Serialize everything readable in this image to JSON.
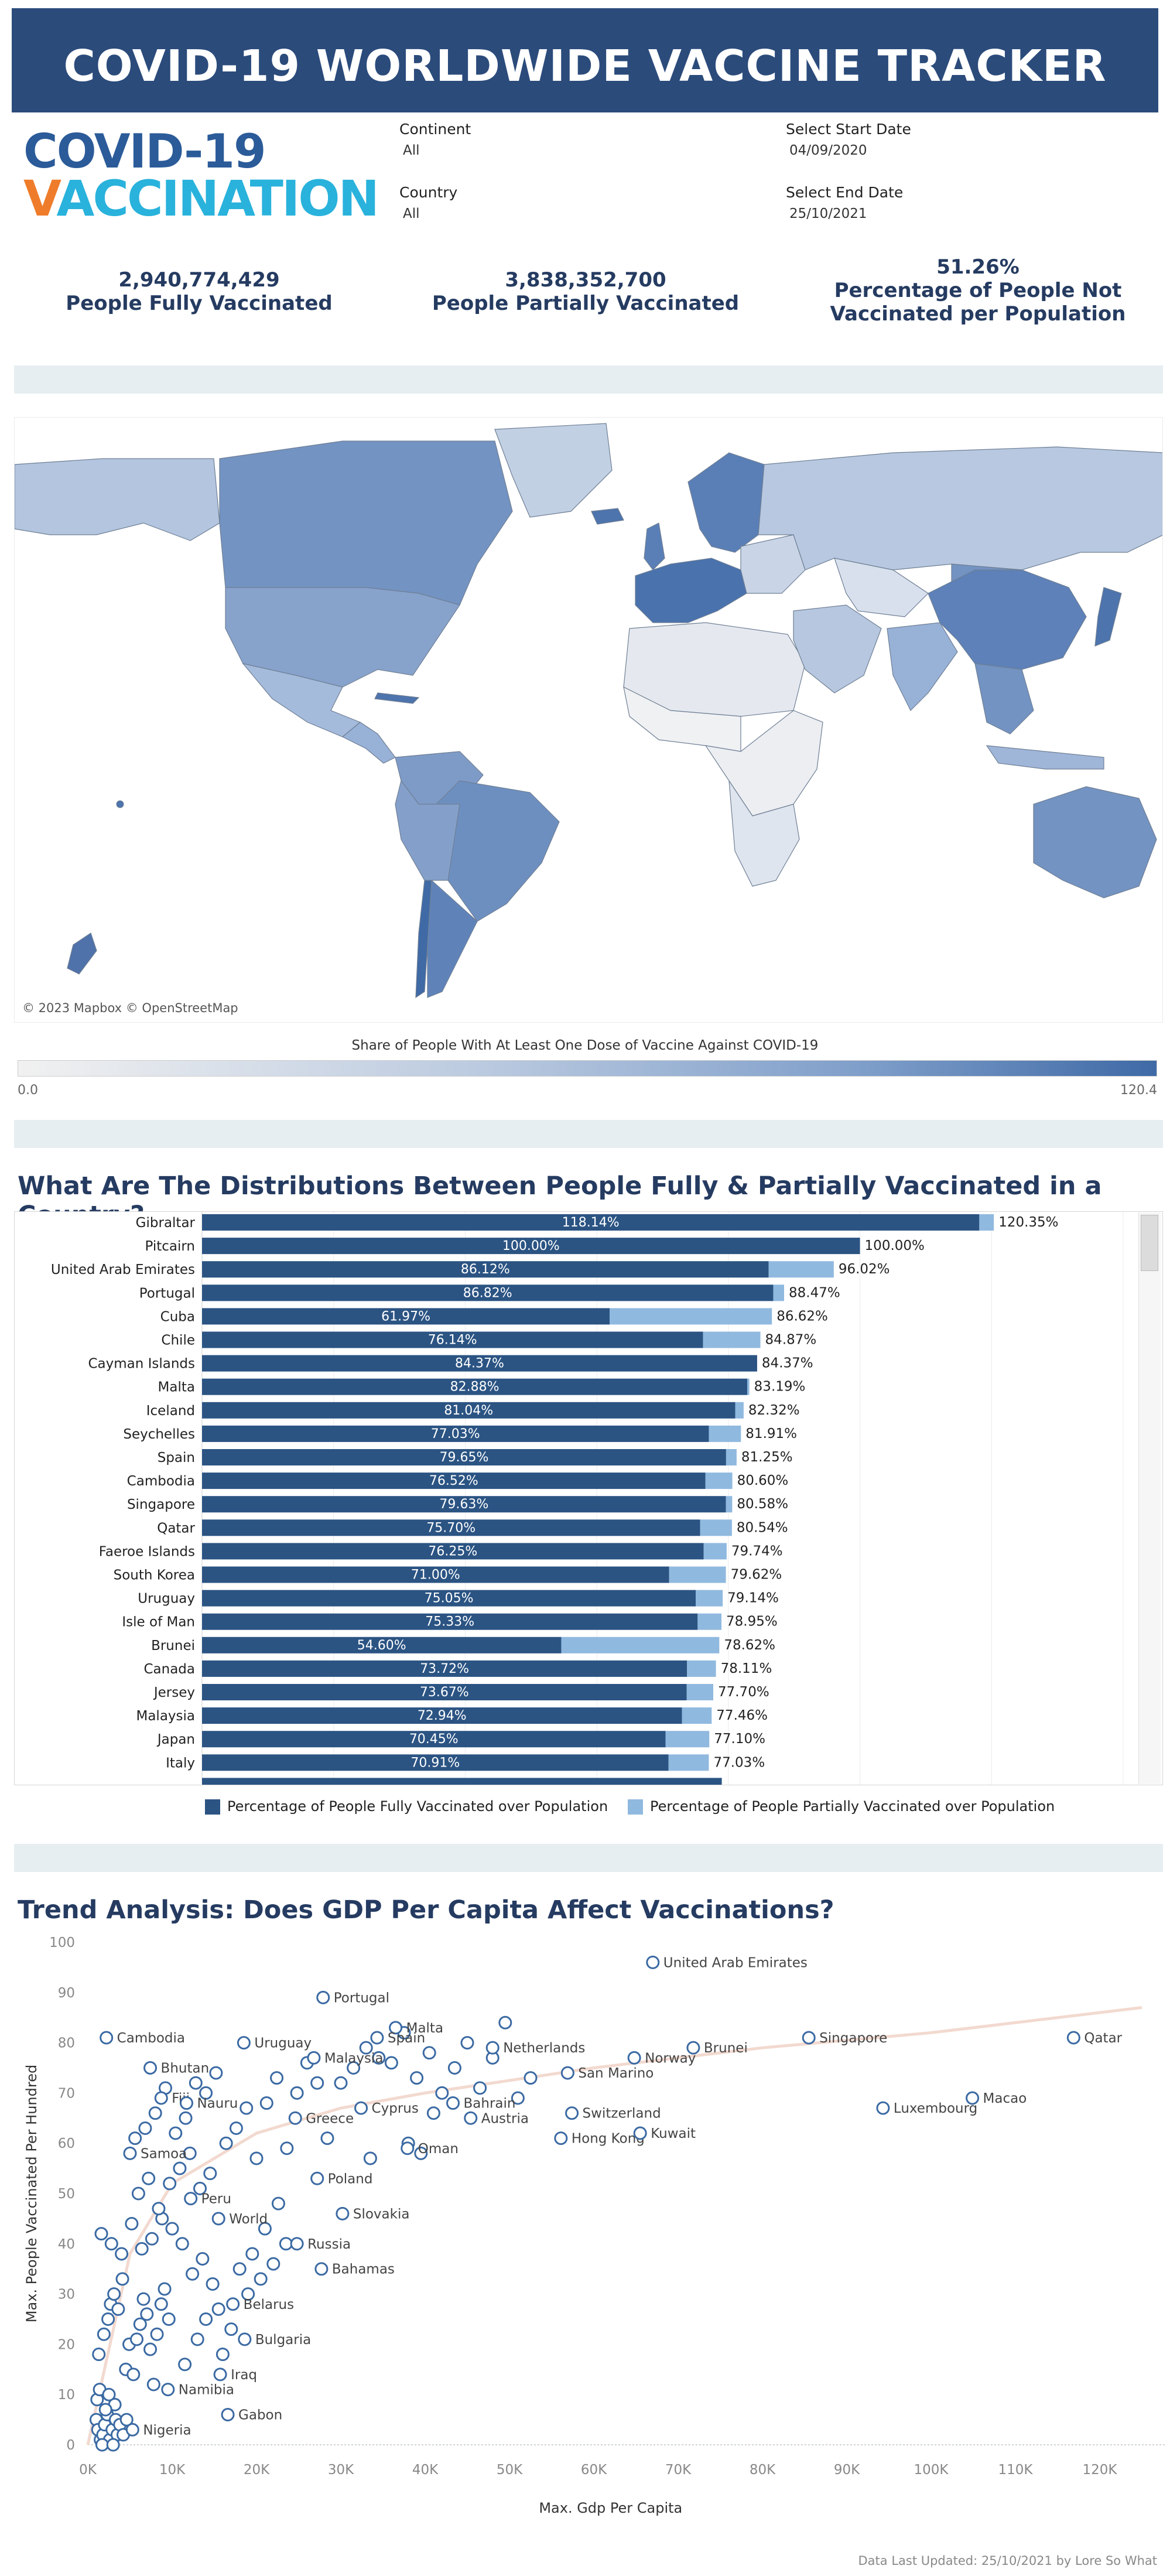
{
  "header": {
    "title": "COVID-19 WORLDWIDE VACCINE TRACKER"
  },
  "logo": {
    "line1": "COVID-19",
    "line2_v": "V",
    "line2_a": "ACCI",
    "line2_b": "NATION"
  },
  "filters": {
    "continent_label": "Continent",
    "continent_value": "All",
    "country_label": "Country",
    "country_value": "All",
    "start_label": "Select Start Date",
    "start_value": "04/09/2020",
    "end_label": "Select End Date",
    "end_value": "25/10/2021"
  },
  "kpis": {
    "fully_value": "2,940,774,429",
    "fully_label": "People Fully Vaccinated",
    "partial_value": "3,838,352,700",
    "partial_label": "People Partially Vaccinated",
    "not_value": "51.26%",
    "not_label_1": "Percentage of People Not",
    "not_label_2": "Vaccinated per Population"
  },
  "map": {
    "attribution": "© 2023 Mapbox © OpenStreetMap",
    "legend_title": "Share of People With At Least One Dose of Vaccine Against COVID-19",
    "legend_min": "0.0",
    "legend_max": "120.4",
    "colors": {
      "low": "#f1f1f1",
      "mid": "#b5c8e2",
      "high": "#3f6aa6"
    }
  },
  "bar_section": {
    "title": "What Are The Distributions Between People Fully & Partially Vaccinated in a Country?",
    "legend_fully": "Percentage of People Fully Vaccinated over Population",
    "legend_partial": "Percentage of People Partially Vaccinated over Population",
    "colors": {
      "fully": "#2b5483",
      "partial": "#90b9df"
    }
  },
  "scatter_section": {
    "title": "Trend Analysis: Does GDP Per Capita Affect Vaccinations?",
    "footer": "Data Last Updated: 25/10/2021 by Lore So What"
  },
  "chart_data": [
    {
      "type": "bar",
      "orientation": "horizontal",
      "stacked": true,
      "categories": [
        "Gibraltar",
        "Pitcairn",
        "United Arab Emirates",
        "Portugal",
        "Cuba",
        "Chile",
        "Cayman Islands",
        "Malta",
        "Iceland",
        "Seychelles",
        "Spain",
        "Cambodia",
        "Singapore",
        "Qatar",
        "Faeroe Islands",
        "South Korea",
        "Uruguay",
        "Isle of Man",
        "Brunei",
        "Canada",
        "Jersey",
        "Malaysia",
        "Japan",
        "Italy"
      ],
      "series": [
        {
          "name": "Percentage of People Fully Vaccinated over Population",
          "values": [
            118.14,
            100.0,
            86.12,
            86.82,
            61.97,
            76.14,
            84.37,
            82.88,
            81.04,
            77.03,
            79.65,
            76.52,
            79.63,
            75.7,
            76.25,
            71.0,
            75.05,
            75.33,
            54.6,
            73.72,
            73.67,
            72.94,
            70.45,
            70.91
          ],
          "labels": [
            "118.14%",
            "100.00%",
            "86.12%",
            "86.82%",
            "61.97%",
            "76.14%",
            "84.37%",
            "82.88%",
            "81.04%",
            "77.03%",
            "79.65%",
            "76.52%",
            "79.63%",
            "75.70%",
            "76.25%",
            "71.00%",
            "75.05%",
            "75.33%",
            "54.60%",
            "73.72%",
            "73.67%",
            "72.94%",
            "70.45%",
            "70.91%"
          ]
        },
        {
          "name": "Percentage of People Partially Vaccinated over Population",
          "totals": [
            120.35,
            100.0,
            96.02,
            88.47,
            86.62,
            84.87,
            84.37,
            83.19,
            82.32,
            81.91,
            81.25,
            80.6,
            80.58,
            80.54,
            79.74,
            79.62,
            79.14,
            78.95,
            78.62,
            78.11,
            77.7,
            77.46,
            77.1,
            77.03
          ],
          "labels": [
            "120.35%",
            "100.00%",
            "96.02%",
            "88.47%",
            "86.62%",
            "84.87%",
            "84.37%",
            "83.19%",
            "82.32%",
            "81.91%",
            "81.25%",
            "80.60%",
            "80.58%",
            "80.54%",
            "79.74%",
            "79.62%",
            "79.14%",
            "78.95%",
            "78.62%",
            "78.11%",
            "77.70%",
            "77.46%",
            "77.10%",
            "77.03%"
          ]
        }
      ]
    },
    {
      "type": "scatter",
      "title": "Trend Analysis: Does GDP Per Capita Affect Vaccinations?",
      "xlabel": "Max. Gdp Per Capita",
      "ylabel": "Max. People Vaccinated Per Hundred",
      "xlim": [
        0,
        125000
      ],
      "ylim": [
        0,
        100
      ],
      "xticks": [
        0,
        10000,
        20000,
        30000,
        40000,
        50000,
        60000,
        70000,
        80000,
        90000,
        100000,
        110000,
        120000
      ],
      "xtick_labels": [
        "0K",
        "10K",
        "20K",
        "30K",
        "40K",
        "50K",
        "60K",
        "70K",
        "80K",
        "90K",
        "100K",
        "110K",
        "120K"
      ],
      "yticks": [
        0,
        10,
        20,
        30,
        40,
        50,
        60,
        70,
        80,
        90,
        100
      ],
      "trend": [
        [
          0,
          0
        ],
        [
          5000,
          38
        ],
        [
          10000,
          52
        ],
        [
          20000,
          62
        ],
        [
          30000,
          67
        ],
        [
          40000,
          70
        ],
        [
          60000,
          75
        ],
        [
          80000,
          79
        ],
        [
          100000,
          82
        ],
        [
          125000,
          87
        ]
      ],
      "labeled_points": [
        {
          "name": "United Arab Emirates",
          "x": 67000,
          "y": 96
        },
        {
          "name": "Portugal",
          "x": 27900,
          "y": 89
        },
        {
          "name": "Malta",
          "x": 36500,
          "y": 83
        },
        {
          "name": "Spain",
          "x": 34300,
          "y": 81
        },
        {
          "name": "Uruguay",
          "x": 18500,
          "y": 80
        },
        {
          "name": "Cambodia",
          "x": 2200,
          "y": 81
        },
        {
          "name": "Netherlands",
          "x": 48000,
          "y": 79
        },
        {
          "name": "Norway",
          "x": 64800,
          "y": 77
        },
        {
          "name": "Brunei",
          "x": 71800,
          "y": 79
        },
        {
          "name": "Singapore",
          "x": 85500,
          "y": 81
        },
        {
          "name": "Qatar",
          "x": 116900,
          "y": 81
        },
        {
          "name": "Bhutan",
          "x": 7400,
          "y": 75
        },
        {
          "name": "Malaysia",
          "x": 26800,
          "y": 77
        },
        {
          "name": "Fiji",
          "x": 8700,
          "y": 69
        },
        {
          "name": "Nauru",
          "x": 11700,
          "y": 68
        },
        {
          "name": "Greece",
          "x": 24600,
          "y": 65
        },
        {
          "name": "Bahrain",
          "x": 43300,
          "y": 68
        },
        {
          "name": "Cyprus",
          "x": 32400,
          "y": 67
        },
        {
          "name": "San Marino",
          "x": 56900,
          "y": 74
        },
        {
          "name": "Switzerland",
          "x": 57400,
          "y": 66
        },
        {
          "name": "Austria",
          "x": 45400,
          "y": 65
        },
        {
          "name": "Samoa",
          "x": 5000,
          "y": 58
        },
        {
          "name": "Hong Kong",
          "x": 56100,
          "y": 61
        },
        {
          "name": "Kuwait",
          "x": 65500,
          "y": 62
        },
        {
          "name": "Luxembourg",
          "x": 94300,
          "y": 67
        },
        {
          "name": "Macao",
          "x": 104900,
          "y": 69
        },
        {
          "name": "Oman",
          "x": 37900,
          "y": 59
        },
        {
          "name": "Poland",
          "x": 27200,
          "y": 53
        },
        {
          "name": "Peru",
          "x": 12200,
          "y": 49
        },
        {
          "name": "World",
          "x": 15500,
          "y": 45
        },
        {
          "name": "Slovakia",
          "x": 30200,
          "y": 46
        },
        {
          "name": "Russia",
          "x": 24800,
          "y": 40
        },
        {
          "name": "Bahamas",
          "x": 27700,
          "y": 35
        },
        {
          "name": "Belarus",
          "x": 17200,
          "y": 28
        },
        {
          "name": "Bulgaria",
          "x": 18600,
          "y": 21
        },
        {
          "name": "Iraq",
          "x": 15700,
          "y": 14
        },
        {
          "name": "Namibia",
          "x": 9500,
          "y": 11
        },
        {
          "name": "Gabon",
          "x": 16600,
          "y": 6
        },
        {
          "name": "Nigeria",
          "x": 5300,
          "y": 3
        }
      ],
      "other_points": [
        [
          1000,
          5
        ],
        [
          1200,
          3
        ],
        [
          1500,
          1
        ],
        [
          1800,
          2
        ],
        [
          2000,
          4
        ],
        [
          2300,
          6
        ],
        [
          2600,
          1
        ],
        [
          2900,
          3
        ],
        [
          3200,
          8
        ],
        [
          3500,
          2
        ],
        [
          1100,
          9
        ],
        [
          1400,
          11
        ],
        [
          1700,
          0
        ],
        [
          2100,
          7
        ],
        [
          2500,
          10
        ],
        [
          3000,
          0
        ],
        [
          3300,
          5
        ],
        [
          3800,
          4
        ],
        [
          4200,
          2
        ],
        [
          4600,
          5
        ],
        [
          1300,
          18
        ],
        [
          1900,
          22
        ],
        [
          2400,
          25
        ],
        [
          2700,
          28
        ],
        [
          3100,
          30
        ],
        [
          3600,
          27
        ],
        [
          4100,
          33
        ],
        [
          4500,
          15
        ],
        [
          4900,
          20
        ],
        [
          5400,
          14
        ],
        [
          5800,
          21
        ],
        [
          6200,
          24
        ],
        [
          6600,
          29
        ],
        [
          7000,
          26
        ],
        [
          7400,
          19
        ],
        [
          7800,
          12
        ],
        [
          8200,
          22
        ],
        [
          8700,
          28
        ],
        [
          9100,
          31
        ],
        [
          9600,
          25
        ],
        [
          1600,
          42
        ],
        [
          2800,
          40
        ],
        [
          4000,
          38
        ],
        [
          5200,
          44
        ],
        [
          6400,
          39
        ],
        [
          7600,
          41
        ],
        [
          8800,
          45
        ],
        [
          10000,
          43
        ],
        [
          11200,
          40
        ],
        [
          12400,
          34
        ],
        [
          13600,
          37
        ],
        [
          14800,
          32
        ],
        [
          6000,
          50
        ],
        [
          7200,
          53
        ],
        [
          8400,
          47
        ],
        [
          9700,
          52
        ],
        [
          10900,
          55
        ],
        [
          12100,
          58
        ],
        [
          13300,
          51
        ],
        [
          14500,
          54
        ],
        [
          5600,
          61
        ],
        [
          6800,
          63
        ],
        [
          8000,
          66
        ],
        [
          9200,
          71
        ],
        [
          10400,
          62
        ],
        [
          11600,
          65
        ],
        [
          12800,
          72
        ],
        [
          14000,
          70
        ],
        [
          15200,
          74
        ],
        [
          16400,
          60
        ],
        [
          17600,
          63
        ],
        [
          18800,
          67
        ],
        [
          20000,
          57
        ],
        [
          21200,
          68
        ],
        [
          22400,
          73
        ],
        [
          23600,
          59
        ],
        [
          24800,
          70
        ],
        [
          26000,
          76
        ],
        [
          27200,
          72
        ],
        [
          28400,
          61
        ],
        [
          14000,
          25
        ],
        [
          15500,
          27
        ],
        [
          17000,
          23
        ],
        [
          19000,
          30
        ],
        [
          20500,
          33
        ],
        [
          22000,
          36
        ],
        [
          23500,
          40
        ],
        [
          16000,
          18
        ],
        [
          13000,
          21
        ],
        [
          11500,
          16
        ],
        [
          22600,
          48
        ],
        [
          21000,
          43
        ],
        [
          19500,
          38
        ],
        [
          18000,
          35
        ],
        [
          30000,
          72
        ],
        [
          31500,
          75
        ],
        [
          33000,
          79
        ],
        [
          34500,
          77
        ],
        [
          36000,
          76
        ],
        [
          37500,
          82
        ],
        [
          39000,
          73
        ],
        [
          40500,
          78
        ],
        [
          42000,
          70
        ],
        [
          43500,
          75
        ],
        [
          45000,
          80
        ],
        [
          46500,
          71
        ],
        [
          48000,
          77
        ],
        [
          49500,
          84
        ],
        [
          51000,
          69
        ],
        [
          52500,
          73
        ],
        [
          38000,
          60
        ],
        [
          39500,
          58
        ],
        [
          33500,
          57
        ],
        [
          41000,
          66
        ]
      ]
    }
  ]
}
